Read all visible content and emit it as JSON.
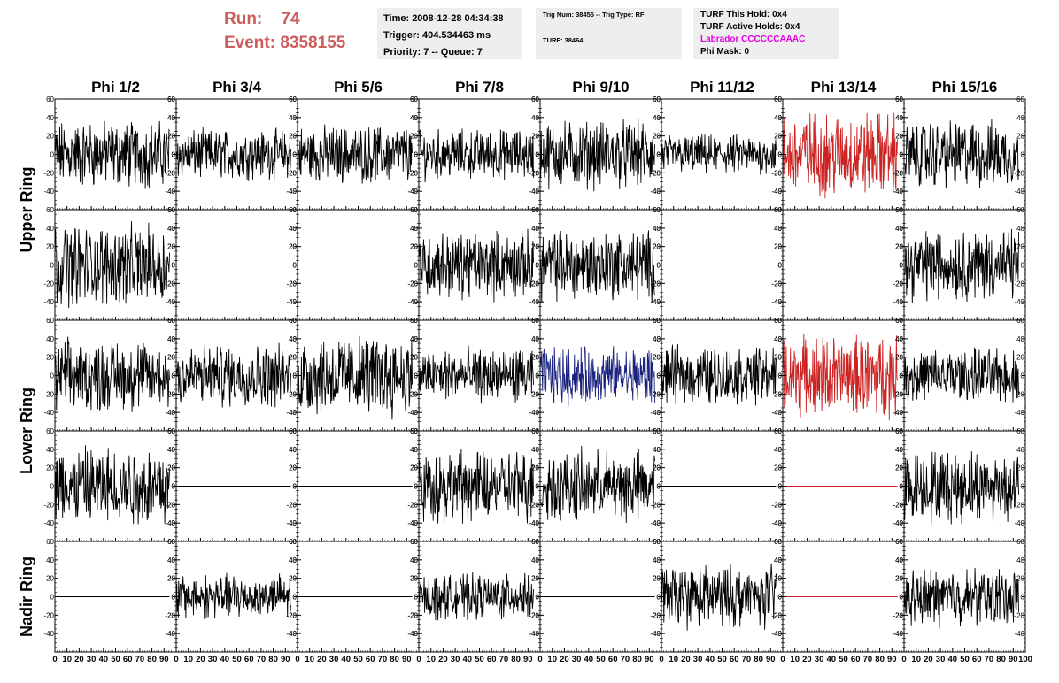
{
  "run": {
    "run_label": "Run:",
    "run_value": "74",
    "event_label": "Event:",
    "event_value": "8358155"
  },
  "time_box": {
    "time": "Time: 2008-12-28 04:34:38",
    "trigger": "Trigger: 404.534463 ms",
    "priority": "Priority: 7 -- Queue: 7"
  },
  "trig_box": {
    "trig": "Trig Num: 38455 -- Trig Type: RF",
    "turf": "TURF: 38464"
  },
  "turf_box": {
    "this_hold": "TURF This Hold: 0x4",
    "active_holds": "TURF Active Holds: 0x4",
    "labrador": "Labrador CCCCCCAAAC",
    "phi_mask": "Phi Mask: 0"
  },
  "colors": {
    "title_red": "#cd5c5c",
    "trace_black": "#000000",
    "trace_red": "#cc2222",
    "trace_blue": "#1a237e",
    "labrador_magenta": "#e100e1",
    "box_grey": "#eeeeee"
  },
  "chart_data": {
    "type": "line",
    "columns": [
      "Phi 1/2",
      "Phi 3/4",
      "Phi 5/6",
      "Phi 7/8",
      "Phi 9/10",
      "Phi 11/12",
      "Phi 13/14",
      "Phi 15/16"
    ],
    "ring_labels": [
      "Upper Ring",
      "Lower Ring",
      "Nadir Ring"
    ],
    "ylim": [
      -60,
      60
    ],
    "yticks": [
      -40,
      -20,
      0,
      20,
      40,
      60
    ],
    "xlim": [
      0,
      100
    ],
    "xticks": [
      0,
      10,
      20,
      30,
      40,
      50,
      60,
      70,
      80,
      90,
      100
    ],
    "grid": false,
    "panels": [
      [
        {
          "amp": 38,
          "color": "black"
        },
        {
          "amp": 28,
          "color": "black"
        },
        {
          "amp": 32,
          "color": "black"
        },
        {
          "amp": 28,
          "color": "black"
        },
        {
          "amp": 38,
          "color": "black"
        },
        {
          "amp": 22,
          "color": "black"
        },
        {
          "amp": 48,
          "color": "red"
        },
        {
          "amp": 38,
          "color": "black"
        }
      ],
      [
        {
          "amp": 45,
          "color": "black"
        },
        {
          "amp": 0,
          "color": "black"
        },
        {
          "amp": 0,
          "color": "black"
        },
        {
          "amp": 38,
          "color": "black"
        },
        {
          "amp": 40,
          "color": "black"
        },
        {
          "amp": 0,
          "color": "black"
        },
        {
          "amp": 0,
          "color": "red"
        },
        {
          "amp": 40,
          "color": "black"
        }
      ],
      [
        {
          "amp": 40,
          "color": "black"
        },
        {
          "amp": 35,
          "color": "black"
        },
        {
          "amp": 45,
          "color": "black"
        },
        {
          "amp": 30,
          "color": "black"
        },
        {
          "amp": 32,
          "color": "blue"
        },
        {
          "amp": 32,
          "color": "black"
        },
        {
          "amp": 45,
          "color": "red"
        },
        {
          "amp": 30,
          "color": "black"
        }
      ],
      [
        {
          "amp": 45,
          "color": "black"
        },
        {
          "amp": 0,
          "color": "black"
        },
        {
          "amp": 0,
          "color": "black"
        },
        {
          "amp": 40,
          "color": "black"
        },
        {
          "amp": 40,
          "color": "black"
        },
        {
          "amp": 0,
          "color": "black"
        },
        {
          "amp": 0,
          "color": "red"
        },
        {
          "amp": 40,
          "color": "black"
        }
      ],
      [
        {
          "amp": 0,
          "color": "black"
        },
        {
          "amp": 25,
          "color": "black"
        },
        {
          "amp": 0,
          "color": "black"
        },
        {
          "amp": 25,
          "color": "black"
        },
        {
          "amp": 0,
          "color": "black"
        },
        {
          "amp": 35,
          "color": "black"
        },
        {
          "amp": 0,
          "color": "red"
        },
        {
          "amp": 32,
          "color": "black"
        }
      ]
    ]
  }
}
